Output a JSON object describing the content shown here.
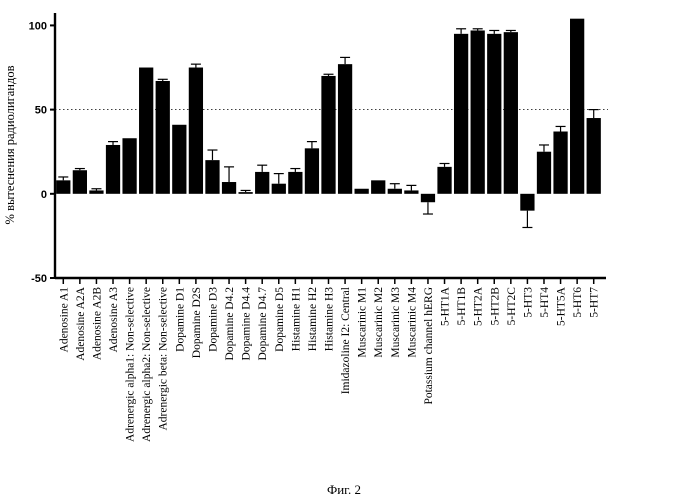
{
  "caption": "Фиг. 2",
  "chart_data": {
    "type": "bar",
    "ylabel": "% вытеснения радиолигандов",
    "xlabel": "",
    "ylim": [
      -50,
      105
    ],
    "yticks": [
      100,
      50,
      0,
      -50
    ],
    "reference_line": 50,
    "grid": false,
    "bar_color": "#000000",
    "categories": [
      "Adenosine A1",
      "Adenosine A2A",
      "Adenosine A2B",
      "Adenosine A3",
      "Adrenergic alpha1: Non-selective",
      "Adrenergic alpha2: Non-selective",
      "Adrenergic beta: Non-selective",
      "Dopamine D1",
      "Dopamine D2S",
      "Dopamine D3",
      "Dopamine D4.2",
      "Dopamine D4.4",
      "Dopamine D4.7",
      "Dopamine D5",
      "Histamine H1",
      "Histamine H2",
      "Histamine H3",
      "Imidazoline I2: Central",
      "Muscarinic M1",
      "Muscarinic M2",
      "Muscarinic M3",
      "Muscarinic M4",
      "Potassium channel hERG",
      "5-HT1A",
      "5-HT1B",
      "5-HT2A",
      "5-HT2B",
      "5-HT2C",
      "5-HT3",
      "5-HT4",
      "5-HT5A",
      "5-HT6",
      "5-HT7"
    ],
    "values": [
      8,
      14,
      2,
      29,
      33,
      75,
      67,
      41,
      75,
      20,
      7,
      1,
      13,
      6,
      13,
      27,
      70,
      77,
      3,
      8,
      3,
      2,
      -5,
      16,
      95,
      97,
      95,
      96,
      -10,
      25,
      37,
      104,
      45
    ],
    "errors": [
      2,
      1,
      1,
      2,
      0,
      0,
      1,
      0,
      2,
      6,
      9,
      1,
      4,
      6,
      2,
      4,
      1,
      4,
      0,
      0,
      3,
      3,
      7,
      2,
      3,
      1,
      2,
      1,
      10,
      4,
      3,
      0,
      5
    ]
  }
}
